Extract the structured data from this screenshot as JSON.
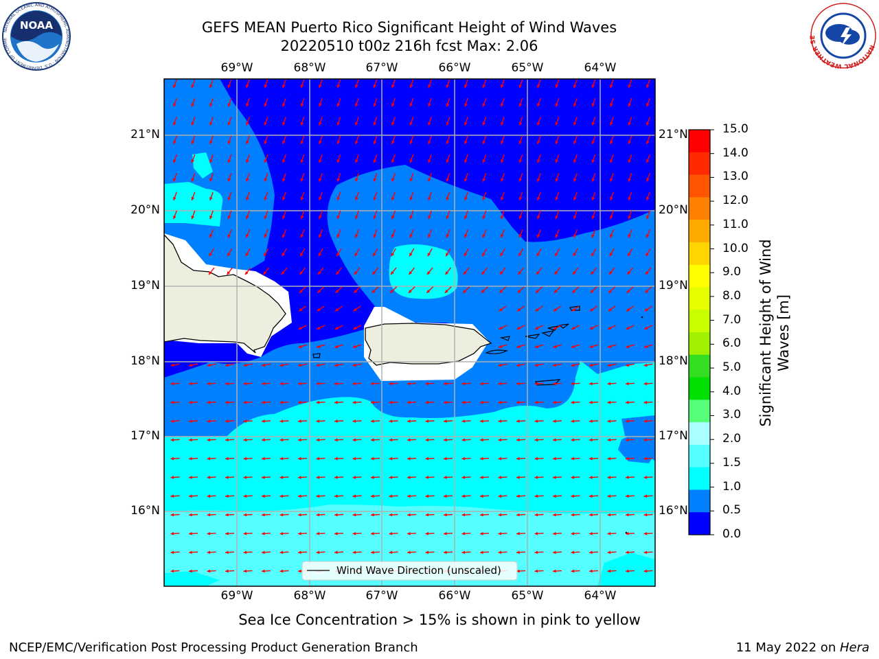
{
  "header": {
    "title_line1": "GEFS MEAN Puerto Rico Significant Height of Wind Waves",
    "title_line2": "20220510 t00z 216h fcst   Max: 2.06"
  },
  "logos": {
    "left": {
      "name": "NOAA",
      "text": "NOAA",
      "ring_text": "NATIONAL OCEANIC AND ATMOSPHERIC ADMINISTRATION · U.S. DEPARTMENT OF COMMERCE"
    },
    "right": {
      "name": "National Weather Service",
      "ring_text": "NATIONAL WEATHER SERVICE"
    }
  },
  "map": {
    "lon_ticks": [
      "69°W",
      "68°W",
      "67°W",
      "66°W",
      "65°W",
      "64°W"
    ],
    "lat_ticks": [
      "21°N",
      "20°N",
      "19°N",
      "18°N",
      "17°N",
      "16°N"
    ],
    "legend_label": "Wind Wave Direction (unscaled)",
    "arrow_color": "#ff0000",
    "land_color": "#eeeedf",
    "grid_color": "#b0b0b0"
  },
  "colorbar": {
    "label_line1": "Significant Height of Wind",
    "label_line2": "Waves [m]",
    "ticks": [
      "15.0",
      "14.0",
      "13.0",
      "12.0",
      "11.0",
      "10.0",
      "9.0",
      "8.0",
      "7.0",
      "6.0",
      "5.0",
      "4.0",
      "3.0",
      "2.0",
      "1.5",
      "1.0",
      "0.5",
      "0.0"
    ],
    "colors_top_to_bottom": [
      "#ff0000",
      "#ff2a00",
      "#ff5500",
      "#ff8000",
      "#ffaa00",
      "#ffd400",
      "#ffff00",
      "#e6ff00",
      "#c8ff00",
      "#a0f000",
      "#33dd22",
      "#00e000",
      "#55ff77",
      "#aaffff",
      "#55ffff",
      "#00ffff",
      "#0080ff",
      "#0000ff"
    ]
  },
  "footer": {
    "note": "Sea Ice Concentration > 15% is shown in pink to yellow",
    "credit": "NCEP/EMC/Verification Post Processing Product Generation Branch",
    "date": "11 May 2022 on ",
    "host": "Hera"
  }
}
